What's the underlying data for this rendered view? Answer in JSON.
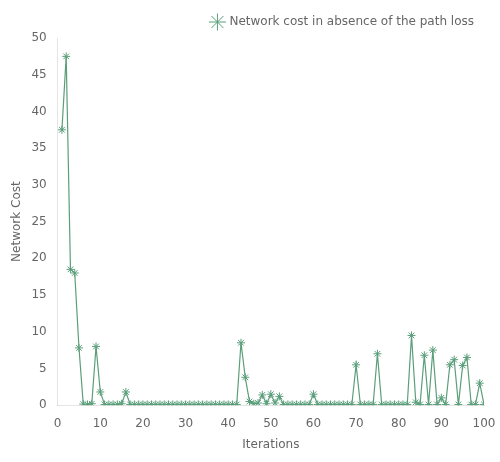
{
  "chart_data": {
    "type": "line",
    "xlabel": "Iterations",
    "ylabel": "Network Cost",
    "x": [
      1,
      2,
      3,
      4,
      5,
      6,
      7,
      8,
      9,
      10,
      11,
      12,
      13,
      14,
      15,
      16,
      17,
      18,
      19,
      20,
      21,
      22,
      23,
      24,
      25,
      26,
      27,
      28,
      29,
      30,
      31,
      32,
      33,
      34,
      35,
      36,
      37,
      38,
      39,
      40,
      41,
      42,
      43,
      44,
      45,
      46,
      47,
      48,
      49,
      50,
      51,
      52,
      53,
      54,
      55,
      56,
      57,
      58,
      59,
      60,
      61,
      62,
      63,
      64,
      65,
      66,
      67,
      68,
      69,
      70,
      71,
      72,
      73,
      74,
      75,
      76,
      77,
      78,
      79,
      80,
      81,
      82,
      83,
      84,
      85,
      86,
      87,
      88,
      89,
      90,
      91,
      92,
      93,
      94,
      95,
      96,
      97,
      98,
      99,
      100
    ],
    "series": [
      {
        "name": "Network cost in absence of the path loss",
        "color": "#5a9e7a",
        "marker": "star",
        "values": [
          37.5,
          47.5,
          18.5,
          18.0,
          7.8,
          0.15,
          0.1,
          0.2,
          8.0,
          1.8,
          0.1,
          0.1,
          0.1,
          0.1,
          0.2,
          1.8,
          0.1,
          0.1,
          0.1,
          0.1,
          0.1,
          0.1,
          0.1,
          0.1,
          0.1,
          0.1,
          0.1,
          0.1,
          0.1,
          0.1,
          0.1,
          0.1,
          0.1,
          0.1,
          0.1,
          0.1,
          0.1,
          0.1,
          0.1,
          0.1,
          0.1,
          0.1,
          8.5,
          3.8,
          0.5,
          0.2,
          0.3,
          1.4,
          0.2,
          1.5,
          0.3,
          1.2,
          0.1,
          0.1,
          0.1,
          0.1,
          0.1,
          0.1,
          0.1,
          1.5,
          0.1,
          0.1,
          0.1,
          0.1,
          0.1,
          0.1,
          0.1,
          0.1,
          0.1,
          5.5,
          0.1,
          0.1,
          0.1,
          0.1,
          7.0,
          0.1,
          0.1,
          0.1,
          0.1,
          0.1,
          0.1,
          0.1,
          9.5,
          0.4,
          0.1,
          6.8,
          0.1,
          7.5,
          0.1,
          1.0,
          0.1,
          5.5,
          6.2,
          0.1,
          5.4,
          6.5,
          0.1,
          0.1,
          3.0,
          0.1
        ]
      }
    ],
    "xlim": [
      0,
      100
    ],
    "ylim": [
      0,
      50
    ],
    "xticks": [
      0,
      10,
      20,
      30,
      40,
      50,
      60,
      70,
      80,
      90,
      100
    ],
    "yticks": [
      0,
      5,
      10,
      15,
      20,
      25,
      30,
      35,
      40,
      45,
      50
    ],
    "grid": false,
    "legend": "upper right"
  }
}
